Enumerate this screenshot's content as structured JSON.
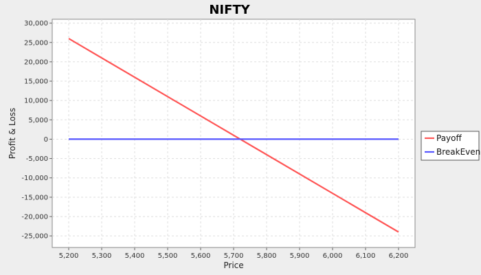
{
  "chart_data": {
    "type": "line",
    "title": "NIFTY",
    "xlabel": "Price",
    "ylabel": "Profit & Loss",
    "xlim": [
      5150,
      6250
    ],
    "ylim": [
      -28000,
      31000
    ],
    "x_ticks": [
      5200,
      5300,
      5400,
      5500,
      5600,
      5700,
      5800,
      5900,
      6000,
      6100,
      6200
    ],
    "x_tick_labels": [
      "5,200",
      "5,300",
      "5,400",
      "5,500",
      "5,600",
      "5,700",
      "5,800",
      "5,900",
      "6,000",
      "6,100",
      "6,200"
    ],
    "y_ticks": [
      -25000,
      -20000,
      -15000,
      -10000,
      -5000,
      0,
      5000,
      10000,
      15000,
      20000,
      25000,
      30000
    ],
    "y_tick_labels": [
      "-25,000",
      "-20,000",
      "-15,000",
      "-10,000",
      "-5,000",
      "0",
      "5,000",
      "10,000",
      "15,000",
      "20,000",
      "25,000",
      "30,000"
    ],
    "grid": true,
    "legend_position": "right",
    "series": [
      {
        "name": "Payoff",
        "color": "#ff5555",
        "x": [
          5200,
          6200
        ],
        "y": [
          26000,
          -24000
        ]
      },
      {
        "name": "BreakEven",
        "color": "#5555ff",
        "x": [
          5200,
          6200
        ],
        "y": [
          0,
          0
        ]
      }
    ]
  }
}
